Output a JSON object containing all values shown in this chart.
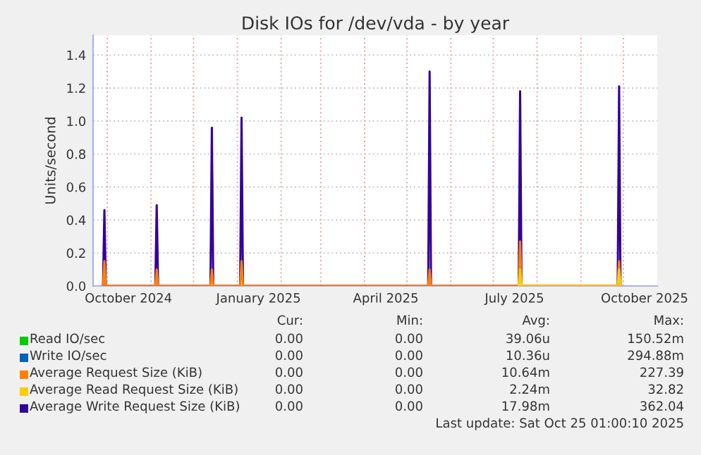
{
  "chart_data": {
    "type": "line",
    "title": "Disk IOs for /dev/vda - by year",
    "ylabel": "Units/second",
    "xlim": [
      "2024-09-21",
      "2025-10-25"
    ],
    "ylim": [
      0,
      1.52
    ],
    "xticks": [
      {
        "value": "2024-10-01",
        "label": null
      },
      {
        "value": "2024-11-01",
        "label": null
      },
      {
        "value": "2024-12-01",
        "label": null
      },
      {
        "value": "2025-01-01",
        "label": null
      },
      {
        "value": "2025-02-01",
        "label": null
      },
      {
        "value": "2025-03-01",
        "label": null
      },
      {
        "value": "2025-04-01",
        "label": null
      },
      {
        "value": "2025-05-01",
        "label": null
      },
      {
        "value": "2025-06-01",
        "label": null
      },
      {
        "value": "2025-07-01",
        "label": null
      },
      {
        "value": "2025-08-01",
        "label": null
      },
      {
        "value": "2025-09-01",
        "label": null
      },
      {
        "value": "2025-10-01",
        "label": null
      },
      {
        "value": "2024-10-16",
        "label": "October 2024"
      },
      {
        "value": "2025-01-16",
        "label": "January 2025"
      },
      {
        "value": "2025-04-16",
        "label": "April 2025"
      },
      {
        "value": "2025-07-16",
        "label": "July 2025"
      },
      {
        "value": "2025-10-16",
        "label": "October 2025"
      }
    ],
    "yticks": [
      {
        "value": 0,
        "label": "0.0"
      },
      {
        "value": 0.2,
        "label": "0.2"
      },
      {
        "value": 0.4,
        "label": "0.4"
      },
      {
        "value": 0.6,
        "label": "0.6"
      },
      {
        "value": 0.8,
        "label": "0.8"
      },
      {
        "value": 1.0,
        "label": "1.0"
      },
      {
        "value": 1.2,
        "label": "1.2"
      },
      {
        "value": 1.4,
        "label": "1.4"
      }
    ],
    "grid": true,
    "legend": "bottom",
    "marker": "none",
    "line_style": "solid",
    "series": [
      {
        "name": "Read IO/sec",
        "color": "#00cc00"
      },
      {
        "name": "Write IO/sec",
        "color": "#0066b3"
      },
      {
        "name": "Average Request Size (KiB)",
        "color": "#ff8000",
        "x": [
          "2024-09-28",
          "2024-09-29",
          "2024-09-30",
          "2024-11-04",
          "2024-11-05",
          "2024-11-06",
          "2024-12-13",
          "2024-12-14",
          "2024-12-15",
          "2025-01-03",
          "2025-01-04",
          "2025-01-05",
          "2025-05-16",
          "2025-05-17",
          "2025-05-18",
          "2025-07-19",
          "2025-07-20",
          "2025-07-21",
          "2025-09-27",
          "2025-09-28",
          "2025-09-29"
        ],
        "values": [
          0,
          0.15,
          0,
          0,
          0.1,
          0,
          0,
          0.1,
          0,
          0,
          0.15,
          0,
          0,
          0.1,
          0,
          0,
          0.27,
          0,
          0,
          0.15,
          0
        ]
      },
      {
        "name": "Average Read Request Size (KiB)",
        "color": "#ffcc00",
        "x": [
          "2025-07-19",
          "2025-07-20",
          "2025-07-21",
          "2025-09-27",
          "2025-09-28",
          "2025-09-29"
        ],
        "values": [
          0,
          0.1,
          0,
          0,
          0.1,
          0
        ]
      },
      {
        "name": "Average Write Request Size (KiB)",
        "color": "#330099",
        "x": [
          "2024-09-28",
          "2024-09-29",
          "2024-09-30",
          "2024-11-04",
          "2024-11-05",
          "2024-11-06",
          "2024-12-13",
          "2024-12-14",
          "2024-12-15",
          "2025-01-03",
          "2025-01-04",
          "2025-01-05",
          "2025-05-16",
          "2025-05-17",
          "2025-05-18",
          "2025-07-19",
          "2025-07-20",
          "2025-07-21",
          "2025-09-27",
          "2025-09-28",
          "2025-09-29"
        ],
        "values": [
          0,
          0.46,
          0,
          0,
          0.49,
          0,
          0,
          0.96,
          0,
          0,
          1.02,
          0,
          0,
          1.3,
          0,
          0,
          1.18,
          0,
          0,
          1.21,
          0
        ]
      }
    ],
    "annotations": [
      "Cur:",
      "Min:",
      "Avg:",
      "Max:",
      "0.00",
      "0.00",
      "39.06u",
      "150.52m",
      "0.00",
      "0.00",
      "10.36u",
      "294.88m",
      "0.00",
      "0.00",
      "10.64m",
      "227.39",
      "0.00",
      "0.00",
      "2.24m",
      "32.82",
      "0.00",
      "0.00",
      "17.98m",
      "362.04",
      "Last update: Sat Oct 25 01:00:10 2025"
    ]
  }
}
